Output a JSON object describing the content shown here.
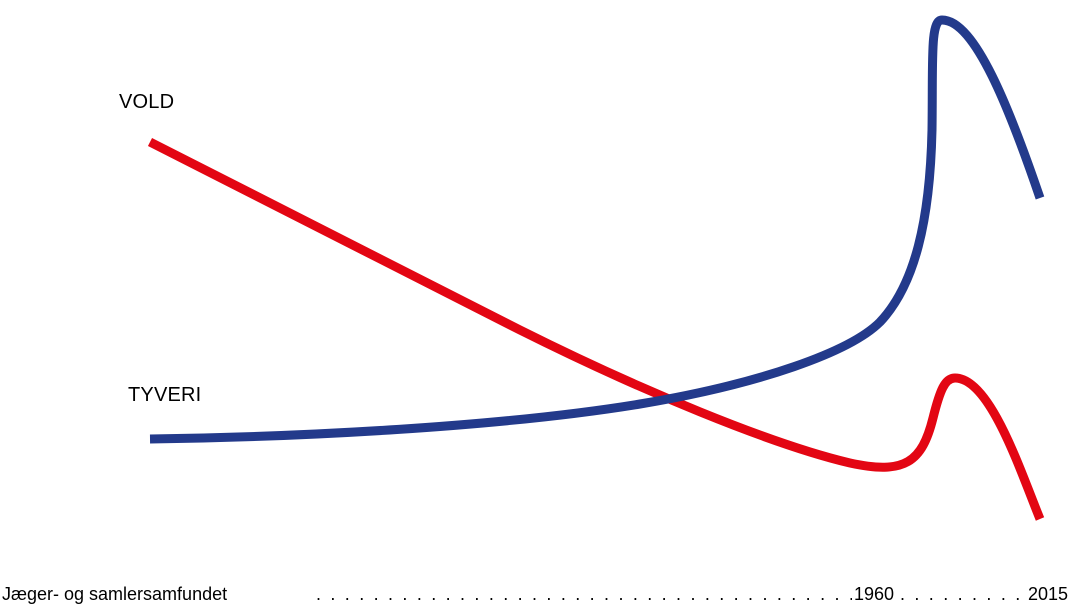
{
  "chart_data": {
    "type": "line",
    "title": "",
    "xlabel": "",
    "ylabel": "",
    "x_ticks": [
      "Jæger- og samlersamfundet",
      "1960",
      "2015"
    ],
    "axis_leader": ". . . . . . . . . . . . . . . . . . . . . . . . . . . . . . . . . . . . . . . . . . . . . . . . . . . . . . . . . . . . . . . . . .",
    "grid": false,
    "legend": "none",
    "series": [
      {
        "name": "VOLD",
        "color": "#e30613",
        "points": [
          [
            0,
            0.81
          ],
          [
            0.45,
            0.38
          ],
          [
            0.7,
            0.11
          ],
          [
            0.8,
            0.21
          ],
          [
            0.95,
            0.0
          ]
        ]
      },
      {
        "name": "TYVERI",
        "color": "#233a8b",
        "points": [
          [
            0,
            0.16
          ],
          [
            0.45,
            0.29
          ],
          [
            0.7,
            0.64
          ],
          [
            0.75,
            0.97
          ],
          [
            0.95,
            0.71
          ]
        ]
      }
    ]
  }
}
